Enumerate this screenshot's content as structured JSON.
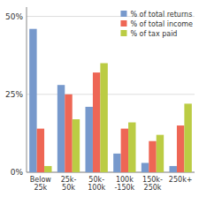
{
  "chart_data": {
    "type": "bar",
    "categories": [
      "Below\n25k",
      "25k-\n50k",
      "50k-\n100k",
      "100k\n-150k",
      "150k-\n250k",
      "250k+"
    ],
    "series": [
      {
        "name": "% of total returns",
        "color": "#7799CC",
        "values": [
          46,
          28,
          21,
          6,
          3,
          2
        ]
      },
      {
        "name": "% of total income",
        "color": "#EE6655",
        "values": [
          14,
          25,
          32,
          14,
          10,
          15
        ]
      },
      {
        "name": "% of tax paid",
        "color": "#BBCC44",
        "values": [
          2,
          17,
          35,
          16,
          12,
          22
        ]
      }
    ],
    "ylim": [
      0,
      53
    ],
    "yticks": [
      {
        "value": 0,
        "label": "0%"
      },
      {
        "value": 25,
        "label": "25%"
      },
      {
        "value": 50,
        "label": "50%"
      }
    ],
    "grid": true,
    "legend": "upper right"
  }
}
